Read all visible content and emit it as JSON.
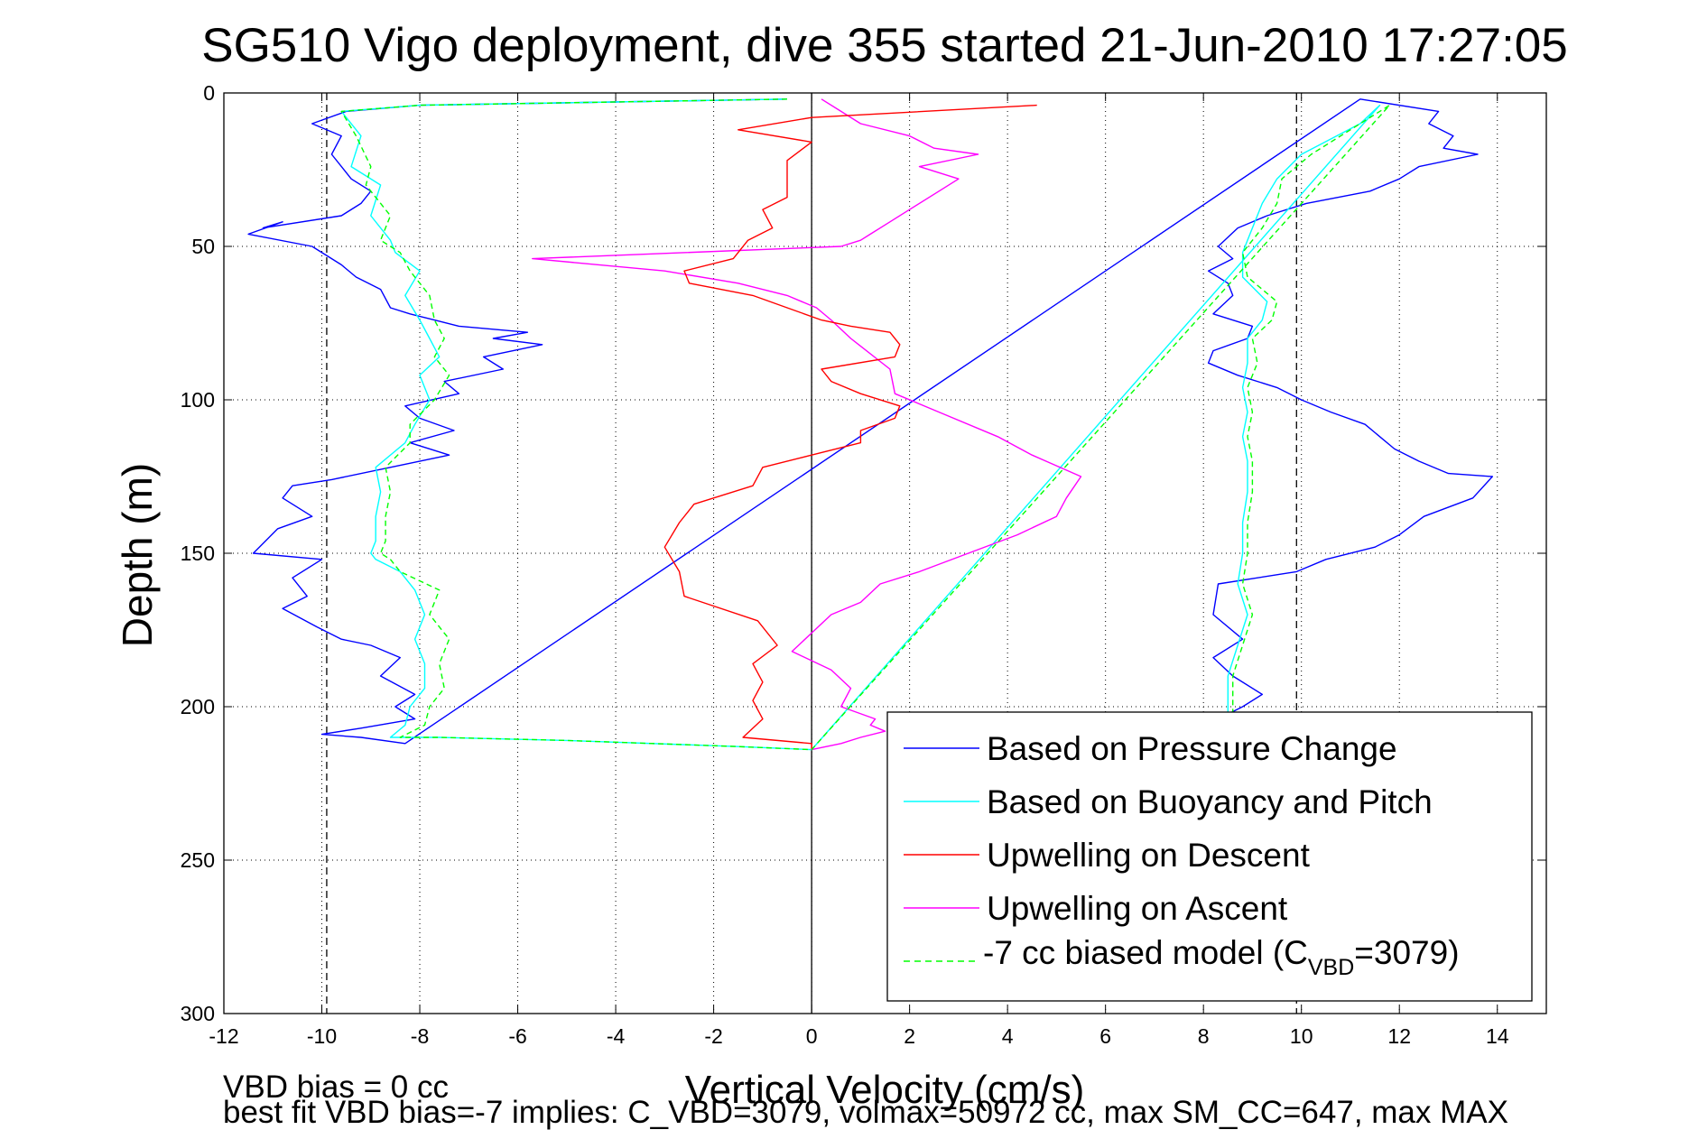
{
  "chart_data": {
    "type": "line",
    "title": "SG510 Vigo deployment, dive 355 started 21-Jun-2010 17:27:05",
    "xlabel": "Vertical Velocity (cm/s)",
    "ylabel": "Depth (m)",
    "xlim": [
      -12,
      15
    ],
    "ylim": [
      0,
      300
    ],
    "y_reversed": true,
    "grid": true,
    "x_ticks": [
      -12,
      -10,
      -8,
      -6,
      -4,
      -2,
      0,
      2,
      4,
      6,
      8,
      10,
      12,
      14
    ],
    "y_ticks": [
      0,
      50,
      100,
      150,
      200,
      250,
      300
    ],
    "vertical_lines": [
      {
        "x": 0,
        "style": "solid",
        "color": "#000000"
      },
      {
        "x": -9.9,
        "style": "dashed",
        "color": "#000000"
      },
      {
        "x": 9.9,
        "style": "dashed",
        "color": "#000000"
      }
    ],
    "legend_position": "lower-right",
    "notes": [
      "VBD bias = 0 cc",
      "best fit VBD bias=-7 implies: C_VBD=3079, volmax=50972 cc, max SM_CC=647, max MAX"
    ],
    "series": [
      {
        "name": "Based on Pressure Change",
        "color": "#0000ff",
        "style": "solid",
        "x": [
          -0.5,
          -8,
          -9.5,
          -10.2,
          -9.6,
          -9.8,
          -9.4,
          -9.0,
          -9.2,
          -9.6,
          -11.2,
          -10.8,
          -11.5,
          -10.2,
          -9.6,
          -9.3,
          -8.8,
          -8.6,
          -8.2,
          -7.7,
          -7.2,
          -5.8,
          -6.5,
          -5.5,
          -6.7,
          -6.3,
          -7.5,
          -7.2,
          -8.3,
          -8.0,
          -7.3,
          -8.2,
          -7.4,
          -8.6,
          -9.8,
          -10.6,
          -10.8,
          -10.2,
          -10.9,
          -11.4,
          -10.0,
          -10.6,
          -10.3,
          -10.8,
          -10.1,
          -9.6,
          -9.0,
          -8.4,
          -8.8,
          -8.1,
          -8.5,
          -8.1,
          -9.2,
          -10.0,
          -9.2,
          -8.3,
          11.2,
          12.8,
          12.6,
          13.1,
          12.9,
          13.6,
          12.4,
          12.0,
          11.4,
          10.1,
          9.3,
          8.7,
          8.3,
          8.6,
          8.1,
          8.5,
          8.6,
          8.2,
          9.0,
          8.9,
          8.2,
          8.1,
          8.7,
          9.5,
          10.0,
          10.6,
          11.3,
          11.6,
          11.9,
          12.4,
          13.0,
          13.9,
          13.5,
          12.5,
          12.0,
          11.5,
          10.5,
          9.9,
          8.3,
          8.2,
          8.8,
          8.2,
          8.6,
          9.2,
          8.8,
          8.3,
          8.1
        ],
        "y": [
          2,
          4,
          6,
          10,
          14,
          20,
          28,
          32,
          36,
          40,
          44,
          42,
          46,
          50,
          56,
          60,
          64,
          70,
          72,
          74,
          76,
          78,
          80,
          82,
          86,
          90,
          94,
          98,
          102,
          106,
          110,
          114,
          118,
          122,
          126,
          128,
          132,
          138,
          142,
          150,
          152,
          158,
          164,
          168,
          174,
          178,
          180,
          184,
          190,
          196,
          200,
          204,
          207,
          209,
          210,
          212,
          2,
          6,
          10,
          14,
          18,
          20,
          24,
          28,
          32,
          36,
          40,
          44,
          50,
          54,
          58,
          62,
          66,
          72,
          76,
          80,
          84,
          88,
          92,
          96,
          100,
          104,
          108,
          112,
          116,
          120,
          124,
          125,
          132,
          138,
          144,
          148,
          152,
          156,
          160,
          170,
          178,
          184,
          190,
          196,
          200,
          204,
          206
        ]
      },
      {
        "name": "Based on Buoyancy and Pitch",
        "color": "#00ffff",
        "style": "solid",
        "x": [
          -0.5,
          -8,
          -9.6,
          -9.2,
          -9.4,
          -8.8,
          -9.0,
          -8.6,
          -8.5,
          -8.0,
          -8.3,
          -8.0,
          -7.8,
          -7.6,
          -8.0,
          -7.8,
          -8.1,
          -8.3,
          -8.9,
          -8.8,
          -8.9,
          -8.9,
          -9.0,
          -8.9,
          -8.4,
          -8.1,
          -7.9,
          -8.1,
          -7.9,
          -7.9,
          -8.2,
          -8.3,
          -8.6,
          -7.6,
          -5.0,
          -1.5,
          0.0,
          11.6,
          11.2,
          10.0,
          9.5,
          9.2,
          9.0,
          8.8,
          8.8,
          9.3,
          9.2,
          8.9,
          8.9,
          8.8,
          8.9,
          8.8,
          8.9,
          8.9,
          8.8,
          8.8,
          8.7,
          8.9,
          8.5,
          8.5
        ],
        "y": [
          2,
          4,
          6,
          14,
          24,
          30,
          40,
          48,
          52,
          58,
          66,
          74,
          80,
          86,
          92,
          100,
          108,
          114,
          122,
          130,
          138,
          146,
          150,
          152,
          156,
          162,
          170,
          178,
          186,
          194,
          200,
          206,
          210,
          210,
          211,
          213,
          214,
          4,
          10,
          20,
          28,
          36,
          44,
          52,
          60,
          68,
          74,
          80,
          88,
          96,
          104,
          112,
          120,
          130,
          140,
          150,
          160,
          170,
          190,
          204
        ]
      },
      {
        "name": "Upwelling on Descent",
        "color": "#ff0000",
        "style": "solid",
        "x": [
          4.6,
          0.0,
          -1.5,
          0.0,
          -0.5,
          -0.5,
          -0.5,
          -1.0,
          -0.8,
          -1.3,
          -1.6,
          -2.6,
          -2.5,
          -1.2,
          -0.5,
          0.2,
          0.8,
          1.6,
          1.8,
          1.7,
          0.2,
          0.4,
          1.0,
          1.8,
          1.7,
          1.0,
          1.0,
          0.0,
          -1.0,
          -1.2,
          -2.4,
          -2.7,
          -3.0,
          -2.7,
          -2.6,
          -1.1,
          -0.7,
          -1.2,
          -1.0,
          -1.2,
          -1.0,
          -1.4,
          0.0,
          0.0
        ],
        "y": [
          4,
          8,
          12,
          16,
          22,
          28,
          34,
          38,
          44,
          48,
          54,
          58,
          62,
          66,
          70,
          74,
          76,
          78,
          82,
          86,
          90,
          94,
          98,
          102,
          106,
          110,
          114,
          118,
          122,
          128,
          134,
          140,
          148,
          156,
          164,
          172,
          180,
          186,
          192,
          198,
          204,
          210,
          212,
          214
        ]
      },
      {
        "name": "Upwelling on Ascent",
        "color": "#ff00ff",
        "style": "solid",
        "x": [
          0.2,
          0.6,
          1.0,
          2.0,
          2.5,
          3.4,
          2.2,
          3.0,
          2.6,
          2.0,
          1.6,
          1.2,
          1.0,
          0.6,
          -5.7,
          -3.0,
          -1.5,
          -0.5,
          0.1,
          0.4,
          0.8,
          1.6,
          1.7,
          2.6,
          3.8,
          4.5,
          5.5,
          5.2,
          5.0,
          4.2,
          3.2,
          2.2,
          1.4,
          1.0,
          0.4,
          0.0,
          -0.4,
          0.4,
          0.8,
          0.6,
          1.3,
          1.2,
          1.5,
          1.0,
          0.6,
          0.0
        ],
        "y": [
          2,
          6,
          10,
          14,
          18,
          20,
          24,
          28,
          32,
          38,
          42,
          46,
          48,
          50,
          54,
          58,
          62,
          66,
          70,
          74,
          80,
          90,
          98,
          104,
          112,
          118,
          125,
          132,
          138,
          144,
          150,
          156,
          160,
          166,
          170,
          176,
          182,
          188,
          194,
          200,
          204,
          206,
          208,
          210,
          212,
          214
        ]
      },
      {
        "name": "-7 cc biased model (C_VBD=3079)",
        "color": "#00ff00",
        "style": "dashed",
        "x": [
          -0.5,
          -8,
          -9.6,
          -9.3,
          -9.0,
          -9.1,
          -8.6,
          -8.8,
          -8.4,
          -8.2,
          -7.8,
          -7.7,
          -7.5,
          -7.7,
          -7.4,
          -7.7,
          -8.2,
          -8.2,
          -8.7,
          -8.6,
          -8.7,
          -8.7,
          -8.8,
          -8.6,
          -8.4,
          -7.6,
          -7.8,
          -7.4,
          -7.6,
          -7.5,
          -7.8,
          -7.9,
          -8.4,
          -7.6,
          -5.0,
          -1.5,
          0.0,
          11.8,
          11.2,
          10.2,
          9.6,
          9.5,
          9.2,
          8.8,
          8.9,
          9.5,
          9.4,
          9.0,
          9.1,
          8.9,
          9.0,
          8.9,
          9.0,
          9.0,
          8.9,
          8.9,
          8.8,
          9.0,
          8.6,
          8.6
        ],
        "y": [
          2,
          4,
          6,
          14,
          24,
          30,
          40,
          48,
          52,
          58,
          66,
          74,
          80,
          86,
          92,
          100,
          108,
          114,
          122,
          130,
          138,
          146,
          150,
          152,
          156,
          162,
          170,
          178,
          186,
          194,
          200,
          206,
          210,
          210,
          211,
          213,
          214,
          4,
          10,
          20,
          28,
          36,
          44,
          52,
          60,
          68,
          74,
          80,
          88,
          96,
          104,
          112,
          120,
          130,
          140,
          150,
          160,
          170,
          190,
          204
        ]
      }
    ]
  },
  "legend": {
    "items": [
      {
        "label": "Based on Pressure Change",
        "color": "#0000ff",
        "dash": ""
      },
      {
        "label": "Based on Buoyancy and Pitch",
        "color": "#00ffff",
        "dash": ""
      },
      {
        "label": "Upwelling on Descent",
        "color": "#ff0000",
        "dash": ""
      },
      {
        "label": "Upwelling on Ascent",
        "color": "#ff00ff",
        "dash": ""
      }
    ],
    "model_label_prefix": "-7 cc biased model (C",
    "model_label_sub": "VBD",
    "model_label_suffix": "=3079)",
    "model_color": "#00ff00"
  }
}
